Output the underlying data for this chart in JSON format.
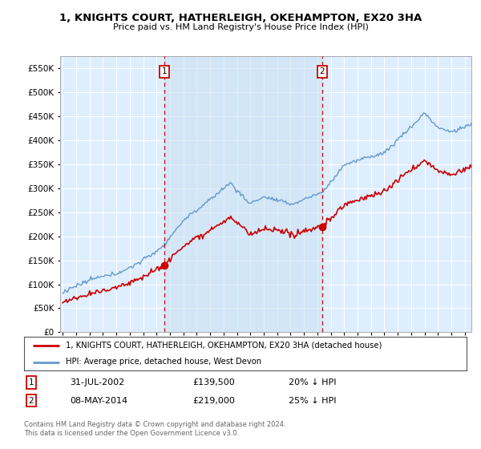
{
  "title": "1, KNIGHTS COURT, HATHERLEIGH, OKEHAMPTON, EX20 3HA",
  "subtitle": "Price paid vs. HM Land Registry's House Price Index (HPI)",
  "legend_line1": "1, KNIGHTS COURT, HATHERLEIGH, OKEHAMPTON, EX20 3HA (detached house)",
  "legend_line2": "HPI: Average price, detached house, West Devon",
  "transaction1_date": "31-JUL-2002",
  "transaction1_price": "£139,500",
  "transaction1_hpi": "20% ↓ HPI",
  "transaction1_year": 2002.58,
  "transaction1_value": 139500,
  "transaction2_date": "08-MAY-2014",
  "transaction2_price": "£219,000",
  "transaction2_hpi": "25% ↓ HPI",
  "transaction2_year": 2014.36,
  "transaction2_value": 219000,
  "footer": "Contains HM Land Registry data © Crown copyright and database right 2024.\nThis data is licensed under the Open Government Licence v3.0.",
  "line_color_red": "#cc0000",
  "line_color_blue": "#6699cc",
  "vline_color": "#cc0000",
  "plot_bg": "#ddeeff",
  "shade_color": "#cce0f0",
  "ylim": [
    0,
    575000
  ],
  "xlim_start": 1994.8,
  "xlim_end": 2025.5
}
